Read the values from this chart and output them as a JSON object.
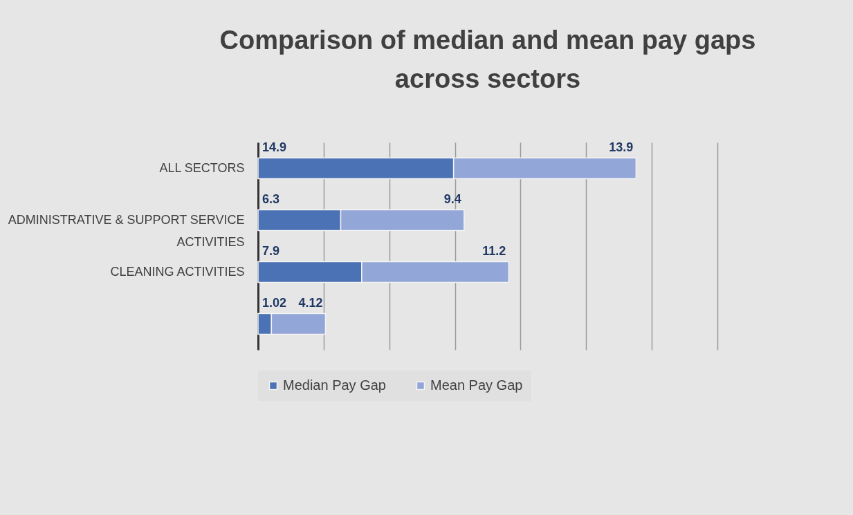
{
  "chart_data": {
    "type": "bar",
    "orientation": "horizontal",
    "stacked": true,
    "title": "Comparison of median and mean pay gaps across sectors",
    "categories": [
      "ALL SECTORS",
      "ADMINISTRATIVE & SUPPORT SERVICE ACTIVITIES",
      "CLEANING ACTIVITIES",
      null
    ],
    "series": [
      {
        "name": "Median Pay Gap",
        "color": "#4a72b5",
        "values": [
          14.9,
          6.3,
          7.9,
          1.02
        ]
      },
      {
        "name": "Mean Pay Gap",
        "color": "#93a6d8",
        "values": [
          13.9,
          9.4,
          11.2,
          4.12
        ]
      }
    ],
    "xlim": [
      0,
      35
    ],
    "xticks": [
      {
        "value": 0,
        "label": null
      },
      {
        "value": 5,
        "label": null
      },
      {
        "value": 10,
        "label": null
      },
      {
        "value": 15,
        "label": null
      },
      {
        "value": 20,
        "label": null
      },
      {
        "value": 25,
        "label": null
      },
      {
        "value": 30,
        "label": null
      },
      {
        "value": 35,
        "label": null
      }
    ],
    "tick_labels": "y",
    "grid": "x",
    "legend": "bottom",
    "data_labels": true
  }
}
